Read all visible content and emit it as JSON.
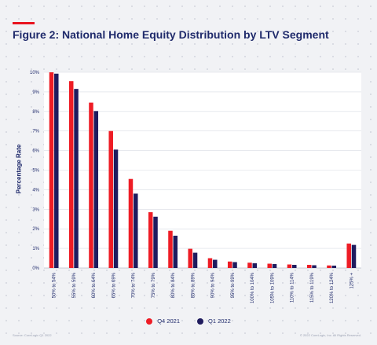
{
  "header": {
    "title": "Figure 2: National Home Equity Distribution by LTV Segment",
    "accent_color": "#e8141f"
  },
  "footer": {
    "source": "Source: CoreLogic Q1 2022",
    "copyright": "© 2022 CoreLogic, Inc. All Rights Reserved."
  },
  "chart_data": {
    "type": "bar",
    "ylabel": "Percentage Rate",
    "xlabel": "",
    "ylim": [
      0,
      10
    ],
    "y_ticks": [
      "0%",
      "1%",
      "2%",
      "3%",
      "4%",
      "5%",
      "6%",
      "7%",
      "8%",
      "9%",
      "10%"
    ],
    "grid": "horizontal",
    "legend_position": "bottom",
    "categories": [
      "50% to 54%",
      "55% to 59%",
      "60% to 64%",
      "65% to 69%",
      "70% to 74%",
      "75% to 79%",
      "80% to 84%",
      "85% to 89%",
      "90% to 94%",
      "95% to 99%",
      "100% to 104%",
      "105% to 109%",
      "110% to 114%",
      "115% to 119%",
      "120% to 124%",
      "125% +"
    ],
    "series": [
      {
        "name": "Q4 2021",
        "color": "#ee1c25",
        "values": [
          10.0,
          9.55,
          8.45,
          7.0,
          4.55,
          2.85,
          1.9,
          0.98,
          0.5,
          0.33,
          0.27,
          0.22,
          0.18,
          0.16,
          0.13,
          1.25
        ]
      },
      {
        "name": "Q1 2022",
        "color": "#1f1b5e",
        "values": [
          9.93,
          9.15,
          8.02,
          6.05,
          3.8,
          2.62,
          1.65,
          0.78,
          0.42,
          0.3,
          0.24,
          0.2,
          0.16,
          0.14,
          0.12,
          1.18
        ]
      }
    ]
  }
}
